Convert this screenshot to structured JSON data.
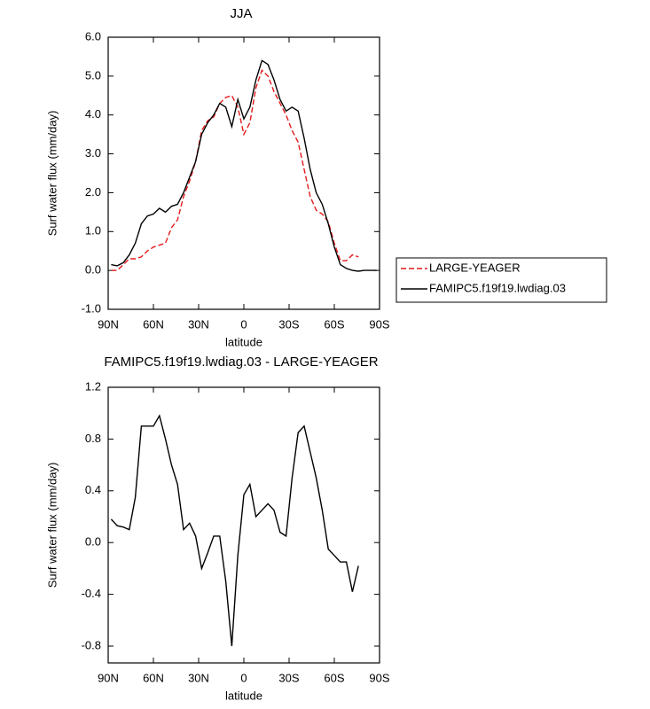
{
  "chart_data": [
    {
      "type": "line",
      "title": "JJA",
      "xlabel": "latitude",
      "ylabel": "Surf water flux (mm/day)",
      "x": [
        88,
        84,
        80,
        76,
        72,
        68,
        64,
        60,
        56,
        52,
        48,
        44,
        40,
        36,
        32,
        28,
        24,
        20,
        16,
        12,
        8,
        4,
        0,
        -4,
        -8,
        -12,
        -16,
        -20,
        -24,
        -28,
        -32,
        -36,
        -40,
        -44,
        -48,
        -52,
        -56,
        -60,
        -64,
        -68,
        -72,
        -76,
        -80,
        -84,
        -88
      ],
      "series": [
        {
          "name": "LARGE-YEAGER",
          "color": "#e41a1c",
          "dash": true,
          "values": [
            0,
            0,
            0.15,
            0.3,
            0.3,
            0.35,
            0.5,
            0.6,
            0.65,
            0.7,
            1.1,
            1.3,
            1.9,
            2.3,
            2.8,
            3.6,
            3.85,
            3.95,
            4.3,
            4.45,
            4.5,
            4.2,
            3.5,
            3.8,
            4.7,
            5.15,
            5.0,
            4.6,
            4.3,
            4.0,
            3.6,
            3.3,
            2.6,
            1.9,
            1.55,
            1.45,
            1.25,
            0.7,
            0.25,
            0.25,
            0.4,
            0.35,
            null,
            null,
            null
          ]
        },
        {
          "name": "FAMIPC5.f19f19.lwdiag.03",
          "color": "#000000",
          "dash": false,
          "values": [
            0.15,
            0.12,
            0.2,
            0.4,
            0.7,
            1.2,
            1.4,
            1.45,
            1.6,
            1.5,
            1.65,
            1.7,
            2.0,
            2.4,
            2.8,
            3.5,
            3.8,
            4.0,
            4.3,
            4.2,
            3.7,
            4.4,
            3.9,
            4.2,
            4.9,
            5.4,
            5.3,
            4.9,
            4.4,
            4.1,
            4.2,
            4.1,
            3.4,
            2.6,
            2.0,
            1.7,
            1.2,
            0.6,
            0.15,
            0.05,
            0.0,
            -0.02,
            0.0,
            0.0,
            0.0
          ]
        }
      ],
      "xlim": [
        90,
        -90
      ],
      "xticks": [
        {
          "value": 90,
          "label": "90N"
        },
        {
          "value": 60,
          "label": "60N"
        },
        {
          "value": 30,
          "label": "30N"
        },
        0,
        {
          "value": -30,
          "label": "30S"
        },
        {
          "value": -60,
          "label": "60S"
        },
        {
          "value": -90,
          "label": "90S"
        }
      ],
      "ylim": [
        -1,
        6
      ],
      "yticks": [
        {
          "value": -1,
          "label": "-1.0"
        },
        {
          "value": 0,
          "label": "0.0"
        },
        {
          "value": 1,
          "label": "1.0"
        },
        {
          "value": 2,
          "label": "2.0"
        },
        {
          "value": 3,
          "label": "3.0"
        },
        {
          "value": 4,
          "label": "4.0"
        },
        {
          "value": 5,
          "label": "5.0"
        },
        {
          "value": 6,
          "label": "6.0"
        }
      ],
      "legend": "outside-right"
    },
    {
      "type": "line",
      "title": "FAMIPC5.f19f19.lwdiag.03 - LARGE-YEAGER",
      "xlabel": "latitude",
      "ylabel": "Surf water flux (mm/day)",
      "x": [
        88,
        84,
        80,
        76,
        72,
        68,
        64,
        60,
        56,
        52,
        48,
        44,
        40,
        36,
        32,
        28,
        24,
        20,
        16,
        12,
        8,
        4,
        0,
        -4,
        -8,
        -12,
        -16,
        -20,
        -24,
        -28,
        -32,
        -36,
        -40,
        -44,
        -48,
        -52,
        -56,
        -60,
        -64,
        -68,
        -72,
        -76
      ],
      "series": [
        {
          "color": "#000000",
          "dash": false,
          "values": [
            0.18,
            0.13,
            0.12,
            0.1,
            0.35,
            0.9,
            0.9,
            0.9,
            0.98,
            0.8,
            0.6,
            0.45,
            0.1,
            0.15,
            0.05,
            -0.2,
            -0.08,
            0.05,
            0.05,
            -0.3,
            -0.8,
            -0.1,
            0.37,
            0.45,
            0.2,
            0.25,
            0.3,
            0.25,
            0.08,
            0.05,
            0.5,
            0.85,
            0.9,
            0.7,
            0.5,
            0.25,
            -0.05,
            -0.1,
            -0.15,
            -0.15,
            -0.38,
            -0.18
          ]
        }
      ],
      "xlim": [
        90,
        -90
      ],
      "xticks": [
        {
          "value": 90,
          "label": "90N"
        },
        {
          "value": 60,
          "label": "60N"
        },
        {
          "value": 30,
          "label": "30N"
        },
        0,
        {
          "value": -30,
          "label": "30S"
        },
        {
          "value": -60,
          "label": "60S"
        },
        {
          "value": -90,
          "label": "90S"
        }
      ],
      "ylim": [
        -0.93,
        1.2
      ],
      "yticks": [
        -0.8,
        -0.4,
        {
          "value": 0,
          "label": "0.0"
        },
        0.4,
        0.8,
        1.2
      ]
    }
  ]
}
